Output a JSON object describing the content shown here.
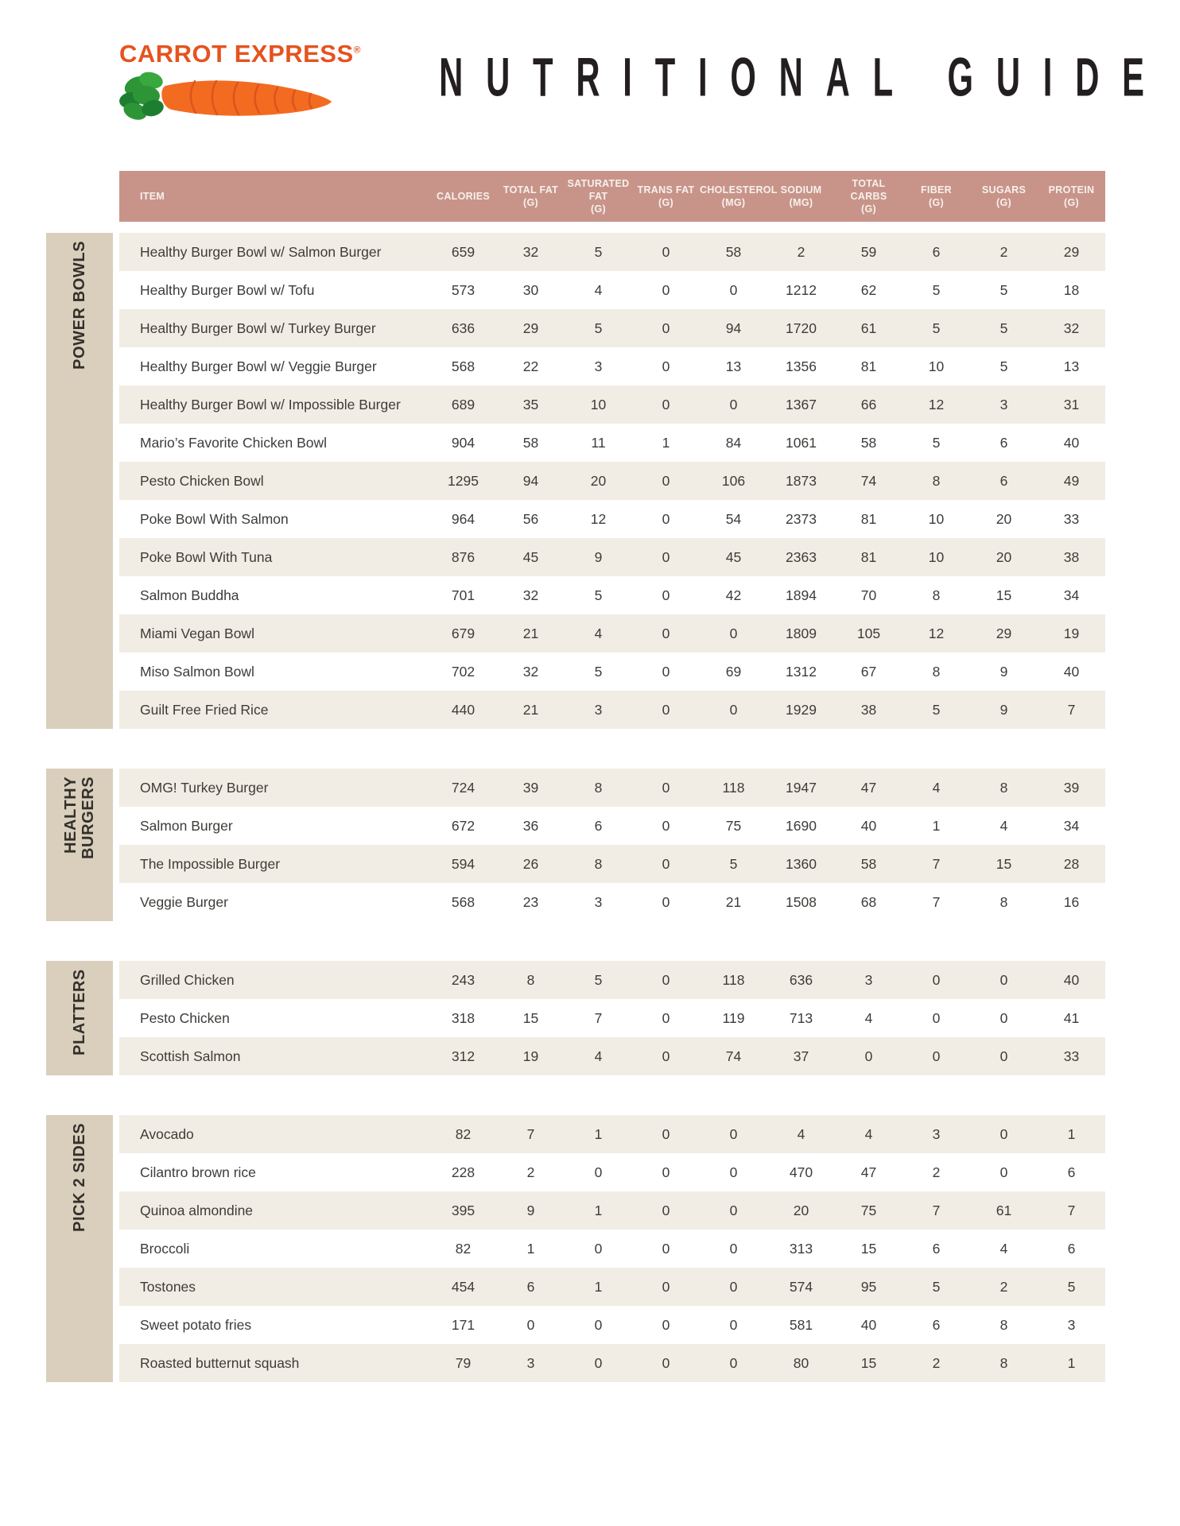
{
  "brand": {
    "name": "CARROT EXPRESS",
    "registered_mark": "®",
    "logo_colors": {
      "orange": "#E5531F",
      "carrot": "#F36B21",
      "leaf_green": "#2E9537"
    }
  },
  "title": "NUTRITIONAL GUIDE",
  "colors": {
    "header_bar": "#C8948A",
    "section_bar": "#D9CFBC",
    "row_stripe": "#F2EDE4"
  },
  "table": {
    "columns": [
      {
        "label": "ITEM",
        "unit": ""
      },
      {
        "label": "CALORIES",
        "unit": ""
      },
      {
        "label": "TOTAL FAT",
        "unit": "(G)"
      },
      {
        "label": "SATURATED FAT",
        "unit": "(G)"
      },
      {
        "label": "TRANS FAT",
        "unit": "(G)"
      },
      {
        "label": "CHOLESTEROL",
        "unit": "(MG)"
      },
      {
        "label": "SODIUM",
        "unit": "(MG)"
      },
      {
        "label": "TOTAL CARBS",
        "unit": "(G)"
      },
      {
        "label": "FIBER",
        "unit": "(G)"
      },
      {
        "label": "SUGARS",
        "unit": "(G)"
      },
      {
        "label": "PROTEIN",
        "unit": "(G)"
      }
    ],
    "sections": [
      {
        "label": "POWER BOWLS",
        "label_lines": [
          "POWER BOWLS"
        ],
        "items": [
          {
            "name": "Healthy Burger Bowl w/ Salmon Burger",
            "values": [
              659,
              32,
              5,
              0,
              58,
              2,
              59,
              6,
              2,
              29
            ]
          },
          {
            "name": "Healthy Burger Bowl w/ Tofu",
            "values": [
              573,
              30,
              4,
              0,
              0,
              1212,
              62,
              5,
              5,
              18
            ]
          },
          {
            "name": "Healthy Burger Bowl w/ Turkey Burger",
            "values": [
              636,
              29,
              5,
              0,
              94,
              1720,
              61,
              5,
              5,
              32
            ]
          },
          {
            "name": "Healthy Burger Bowl w/ Veggie Burger",
            "values": [
              568,
              22,
              3,
              0,
              13,
              1356,
              81,
              10,
              5,
              13
            ]
          },
          {
            "name": "Healthy Burger Bowl w/ Impossible Burger",
            "values": [
              689,
              35,
              10,
              0,
              0,
              1367,
              66,
              12,
              3,
              31
            ]
          },
          {
            "name": "Mario’s Favorite Chicken Bowl",
            "values": [
              904,
              58,
              11,
              1,
              84,
              1061,
              58,
              5,
              6,
              40
            ]
          },
          {
            "name": "Pesto Chicken Bowl",
            "values": [
              1295,
              94,
              20,
              0,
              106,
              1873,
              74,
              8,
              6,
              49
            ]
          },
          {
            "name": "Poke Bowl With Salmon",
            "values": [
              964,
              56,
              12,
              0,
              54,
              2373,
              81,
              10,
              20,
              33
            ]
          },
          {
            "name": "Poke Bowl With Tuna",
            "values": [
              876,
              45,
              9,
              0,
              45,
              2363,
              81,
              10,
              20,
              38
            ]
          },
          {
            "name": "Salmon Buddha",
            "values": [
              701,
              32,
              5,
              0,
              42,
              1894,
              70,
              8,
              15,
              34
            ]
          },
          {
            "name": "Miami Vegan Bowl",
            "values": [
              679,
              21,
              4,
              0,
              0,
              1809,
              105,
              12,
              29,
              19
            ]
          },
          {
            "name": "Miso Salmon Bowl",
            "values": [
              702,
              32,
              5,
              0,
              69,
              1312,
              67,
              8,
              9,
              40
            ]
          },
          {
            "name": "Guilt Free Fried Rice",
            "values": [
              440,
              21,
              3,
              0,
              0,
              1929,
              38,
              5,
              9,
              7
            ]
          }
        ]
      },
      {
        "label": "HEALTHY BURGERS",
        "label_lines": [
          "HEALTHY",
          "BURGERS"
        ],
        "items": [
          {
            "name": "OMG! Turkey Burger",
            "values": [
              724,
              39,
              8,
              0,
              118,
              1947,
              47,
              4,
              8,
              39
            ]
          },
          {
            "name": "Salmon Burger",
            "values": [
              672,
              36,
              6,
              0,
              75,
              1690,
              40,
              1,
              4,
              34
            ]
          },
          {
            "name": "The Impossible Burger",
            "values": [
              594,
              26,
              8,
              0,
              5,
              1360,
              58,
              7,
              15,
              28
            ]
          },
          {
            "name": "Veggie Burger",
            "values": [
              568,
              23,
              3,
              0,
              21,
              1508,
              68,
              7,
              8,
              16
            ]
          }
        ]
      },
      {
        "label": "PLATTERS",
        "label_lines": [
          "PLATTERS"
        ],
        "items": [
          {
            "name": "Grilled Chicken",
            "values": [
              243,
              8,
              5,
              0,
              118,
              636,
              3,
              0,
              0,
              40
            ]
          },
          {
            "name": "Pesto Chicken",
            "values": [
              318,
              15,
              7,
              0,
              119,
              713,
              4,
              0,
              0,
              41
            ]
          },
          {
            "name": "Scottish Salmon",
            "values": [
              312,
              19,
              4,
              0,
              74,
              37,
              0,
              0,
              0,
              33
            ]
          }
        ]
      },
      {
        "label": "PICK 2 SIDES",
        "label_lines": [
          "PICK 2 SIDES"
        ],
        "items": [
          {
            "name": "Avocado",
            "values": [
              82,
              7,
              1,
              0,
              0,
              4,
              4,
              3,
              0,
              1
            ]
          },
          {
            "name": "Cilantro brown rice",
            "values": [
              228,
              2,
              0,
              0,
              0,
              470,
              47,
              2,
              0,
              6
            ]
          },
          {
            "name": "Quinoa almondine",
            "values": [
              395,
              9,
              1,
              0,
              0,
              20,
              75,
              7,
              61,
              7
            ]
          },
          {
            "name": "Broccoli",
            "values": [
              82,
              1,
              0,
              0,
              0,
              313,
              15,
              6,
              4,
              6
            ]
          },
          {
            "name": "Tostones",
            "values": [
              454,
              6,
              1,
              0,
              0,
              574,
              95,
              5,
              2,
              5
            ]
          },
          {
            "name": "Sweet potato fries",
            "values": [
              171,
              0,
              0,
              0,
              0,
              581,
              40,
              6,
              8,
              3
            ]
          },
          {
            "name": "Roasted butternut squash",
            "values": [
              79,
              3,
              0,
              0,
              0,
              80,
              15,
              2,
              8,
              1
            ]
          }
        ]
      }
    ]
  }
}
